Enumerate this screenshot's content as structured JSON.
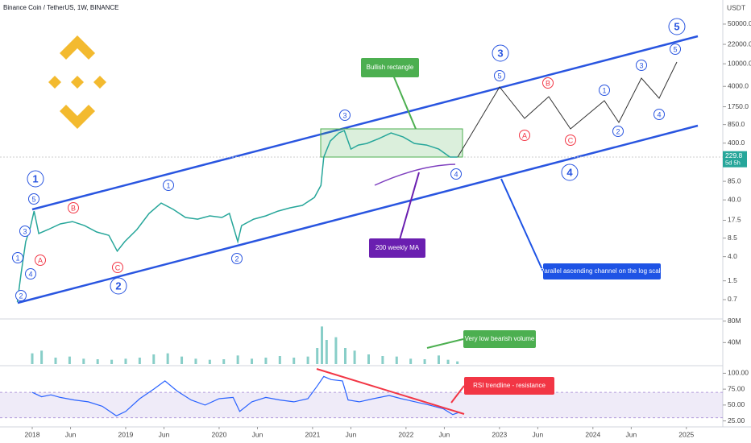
{
  "chart_data": {
    "type": "line",
    "title": "Binance Coin / TetherUS, 1W, BINANCE",
    "currency": "USDT",
    "log_scale": true,
    "color": "#26a69a",
    "x": [
      2017.84,
      2017.88,
      2017.93,
      2017.98,
      2018.02,
      2018.07,
      2018.17,
      2018.3,
      2018.43,
      2018.56,
      2018.69,
      2018.82,
      2018.91,
      2018.99,
      2019.12,
      2019.25,
      2019.38,
      2019.51,
      2019.64,
      2019.77,
      2019.9,
      2020.03,
      2020.11,
      2020.2,
      2020.24,
      2020.37,
      2020.5,
      2020.63,
      2020.76,
      2020.89,
      2021.02,
      2021.09,
      2021.12,
      2021.19,
      2021.28,
      2021.34,
      2021.41,
      2021.49,
      2021.58,
      2021.71,
      2021.84,
      2021.97,
      2022.09,
      2022.22,
      2022.35,
      2022.47,
      2022.55
    ],
    "values": [
      0.63,
      1.99,
      7.35,
      13.2,
      25.4,
      10.2,
      12.0,
      15.1,
      16.6,
      14.1,
      10.9,
      9.5,
      5.0,
      7.35,
      12.0,
      23.1,
      35.2,
      27.2,
      19.6,
      18.3,
      20.9,
      19.6,
      23.1,
      7.35,
      14.1,
      18.3,
      20.9,
      25.4,
      29.0,
      32.0,
      44.3,
      72.3,
      227,
      436,
      604,
      667,
      314,
      370,
      395,
      481,
      604,
      513,
      395,
      370,
      314,
      227,
      227
    ],
    "ylim": [
      0.33,
      133000
    ],
    "yticks": [
      0.7,
      1.5,
      {
        "value": 4,
        "label": "4.0"
      },
      8.5,
      17.5,
      {
        "value": 40,
        "label": "40.0"
      },
      {
        "value": 85,
        "label": "85.0"
      },
      {
        "value": 400,
        "label": "400.0"
      },
      {
        "value": 850,
        "label": "850.0"
      },
      {
        "value": 1750,
        "label": "1750.0"
      },
      {
        "value": 4000,
        "label": "4000.0"
      },
      {
        "value": 10000,
        "label": "10000.0"
      },
      {
        "value": 22000,
        "label": "22000.0"
      },
      {
        "value": 50000,
        "label": "50000.0"
      }
    ],
    "xlim": [
      2017.655,
      2025.39
    ],
    "xticks": [
      2018,
      {
        "value": 2018.41,
        "label": "Jun"
      },
      2019,
      {
        "value": 2019.41,
        "label": "Jun"
      },
      2020,
      {
        "value": 2020.41,
        "label": "Jun"
      },
      2021,
      {
        "value": 2021.41,
        "label": "Jun"
      },
      2022,
      {
        "value": 2022.41,
        "label": "Jun"
      },
      2023,
      {
        "value": 2023.41,
        "label": "Jun"
      },
      2024,
      {
        "value": 2024.41,
        "label": "Jun"
      },
      2025
    ],
    "last_price": 229.8,
    "countdown": "5d 5h",
    "volume": {
      "color": "#26a69a",
      "x": [
        2018.0,
        2018.1,
        2018.25,
        2018.4,
        2018.55,
        2018.7,
        2018.85,
        2019.0,
        2019.15,
        2019.3,
        2019.45,
        2019.6,
        2019.75,
        2019.9,
        2020.05,
        2020.2,
        2020.35,
        2020.5,
        2020.65,
        2020.8,
        2020.95,
        2021.05,
        2021.1,
        2021.15,
        2021.25,
        2021.35,
        2021.45,
        2021.6,
        2021.75,
        2021.9,
        2022.05,
        2022.2,
        2022.35,
        2022.45,
        2022.55
      ],
      "values": [
        20,
        25,
        12,
        14,
        10,
        9,
        8,
        10,
        12,
        18,
        20,
        14,
        10,
        8,
        9,
        16,
        10,
        12,
        15,
        12,
        14,
        30,
        70,
        45,
        50,
        30,
        25,
        18,
        15,
        14,
        10,
        9,
        16,
        8,
        5
      ],
      "ylim": [
        0,
        84000000
      ],
      "yticks": [
        {
          "value": 40000000,
          "label": "40M"
        },
        {
          "value": 80000000,
          "label": "80M"
        }
      ]
    },
    "rsi": {
      "color": "#2962ff",
      "band": [
        30,
        70
      ],
      "x": [
        2018.0,
        2018.1,
        2018.2,
        2018.3,
        2018.45,
        2018.6,
        2018.75,
        2018.9,
        2019.0,
        2019.15,
        2019.3,
        2019.42,
        2019.55,
        2019.7,
        2019.85,
        2020.0,
        2020.15,
        2020.22,
        2020.35,
        2020.5,
        2020.65,
        2020.8,
        2020.95,
        2021.05,
        2021.12,
        2021.2,
        2021.32,
        2021.38,
        2021.5,
        2021.65,
        2021.82,
        2021.95,
        2022.1,
        2022.25,
        2022.4,
        2022.5,
        2022.56
      ],
      "values": [
        70,
        63,
        66,
        62,
        58,
        55,
        48,
        33,
        40,
        60,
        75,
        88,
        72,
        58,
        50,
        60,
        62,
        40,
        55,
        62,
        58,
        55,
        60,
        80,
        95,
        90,
        88,
        58,
        55,
        60,
        65,
        60,
        55,
        50,
        44,
        35,
        38
      ],
      "ylim": [
        15.6,
        109.4
      ],
      "yticks": [
        {
          "value": 25,
          "label": "25.00"
        },
        {
          "value": 50,
          "label": "50.00"
        },
        {
          "value": 75,
          "label": "75.00"
        },
        {
          "value": 100,
          "label": "100.00"
        }
      ]
    },
    "wave_labels": [
      "1",
      "2",
      "3",
      "4",
      "5",
      "2",
      "1",
      "4",
      "3",
      "5",
      "1",
      "2",
      "3",
      "4",
      "5",
      "1",
      "2",
      "3",
      "4",
      "5",
      "A",
      "B",
      "C",
      "A",
      "B",
      "C"
    ],
    "annotations": [
      "Bullish rectangle",
      "200 weekly MA",
      "Parallel ascending channel on the log scale",
      "Very low bearish volume",
      "RSI trendline - resistance"
    ]
  }
}
